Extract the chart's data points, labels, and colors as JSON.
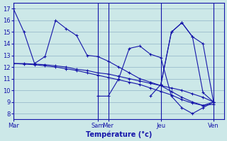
{
  "xlabel": "Température (°c)",
  "background_color": "#cce8e8",
  "line_color": "#1515aa",
  "grid_color": "#99bbcc",
  "ylim": [
    7.5,
    17.5
  ],
  "yticks": [
    8,
    9,
    10,
    11,
    12,
    13,
    14,
    15,
    16,
    17
  ],
  "xlim": [
    0,
    20
  ],
  "vline_positions": [
    0,
    8,
    9,
    14,
    19
  ],
  "tick_positions": [
    0,
    8,
    9,
    14,
    19
  ],
  "tick_labels": [
    "Mar",
    "Sam",
    "Mer",
    "Jeu",
    "Ven"
  ],
  "series": [
    {
      "x": [
        0,
        1,
        2,
        3,
        4,
        5,
        6,
        7,
        8,
        9,
        10,
        11,
        12,
        13,
        14,
        15,
        16,
        17,
        18,
        19
      ],
      "y": [
        17,
        15,
        12.3,
        12.9,
        16.0,
        15.3,
        14.7,
        13.0,
        12.9,
        12.5,
        12.0,
        11.5,
        11.0,
        10.7,
        10.4,
        9.9,
        9.4,
        9.0,
        8.7,
        9.0
      ]
    },
    {
      "x": [
        0,
        1,
        2,
        3,
        4,
        5,
        6,
        7,
        8,
        9,
        10,
        11,
        12,
        13,
        14,
        15,
        16,
        17,
        18,
        19
      ],
      "y": [
        12.3,
        12.3,
        12.25,
        12.2,
        12.1,
        12.0,
        11.8,
        11.7,
        11.5,
        11.4,
        11.2,
        11.0,
        10.8,
        10.6,
        10.4,
        10.2,
        10.0,
        9.7,
        9.4,
        9.0
      ]
    },
    {
      "x": [
        0,
        1,
        2,
        3,
        4,
        5,
        6,
        7,
        8,
        9,
        10,
        11,
        12,
        13,
        14,
        15,
        16,
        17,
        18,
        19
      ],
      "y": [
        12.3,
        12.25,
        12.2,
        12.1,
        12.0,
        11.85,
        11.7,
        11.5,
        11.3,
        11.1,
        10.9,
        10.7,
        10.5,
        10.2,
        9.9,
        9.6,
        9.2,
        8.9,
        8.7,
        8.8
      ]
    },
    {
      "x": [
        8,
        9,
        10,
        11,
        12,
        13,
        14,
        15,
        16,
        17,
        18,
        19
      ],
      "y": [
        9.5,
        9.5,
        11.0,
        13.6,
        13.8,
        13.1,
        12.8,
        9.5,
        8.5,
        8.0,
        8.5,
        9.0
      ]
    },
    {
      "x": [
        13,
        14,
        15,
        16,
        17,
        18,
        19
      ],
      "y": [
        9.5,
        10.5,
        15.0,
        15.8,
        14.6,
        14.0,
        9.0
      ]
    },
    {
      "x": [
        14,
        15,
        16,
        17,
        18,
        19
      ],
      "y": [
        10.5,
        15.0,
        15.8,
        14.6,
        9.8,
        9.0
      ]
    }
  ]
}
